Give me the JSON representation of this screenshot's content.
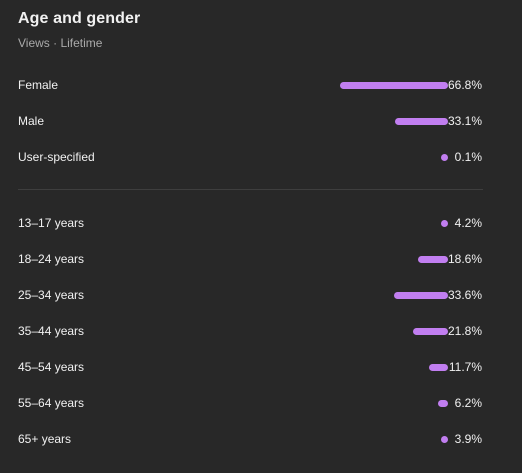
{
  "header": {
    "title": "Age and gender",
    "subtitle": "Views · Lifetime"
  },
  "colors": {
    "background": "#282828",
    "bar": "#c17ef0",
    "divider": "#3e3e3e",
    "subtitle": "#aaaaaa"
  },
  "gender": [
    {
      "label": "Female",
      "value_text": "66.8%",
      "value": 66.8
    },
    {
      "label": "Male",
      "value_text": "33.1%",
      "value": 33.1
    },
    {
      "label": "User-specified",
      "value_text": "0.1%",
      "value": 0.1
    }
  ],
  "age": [
    {
      "label": "13–17 years",
      "value_text": "4.2%",
      "value": 4.2
    },
    {
      "label": "18–24 years",
      "value_text": "18.6%",
      "value": 18.6
    },
    {
      "label": "25–34 years",
      "value_text": "33.6%",
      "value": 33.6
    },
    {
      "label": "35–44 years",
      "value_text": "21.8%",
      "value": 21.8
    },
    {
      "label": "45–54 years",
      "value_text": "11.7%",
      "value": 11.7
    },
    {
      "label": "55–64 years",
      "value_text": "6.2%",
      "value": 6.2
    },
    {
      "label": "65+ years",
      "value_text": "3.9%",
      "value": 3.9
    }
  ]
}
